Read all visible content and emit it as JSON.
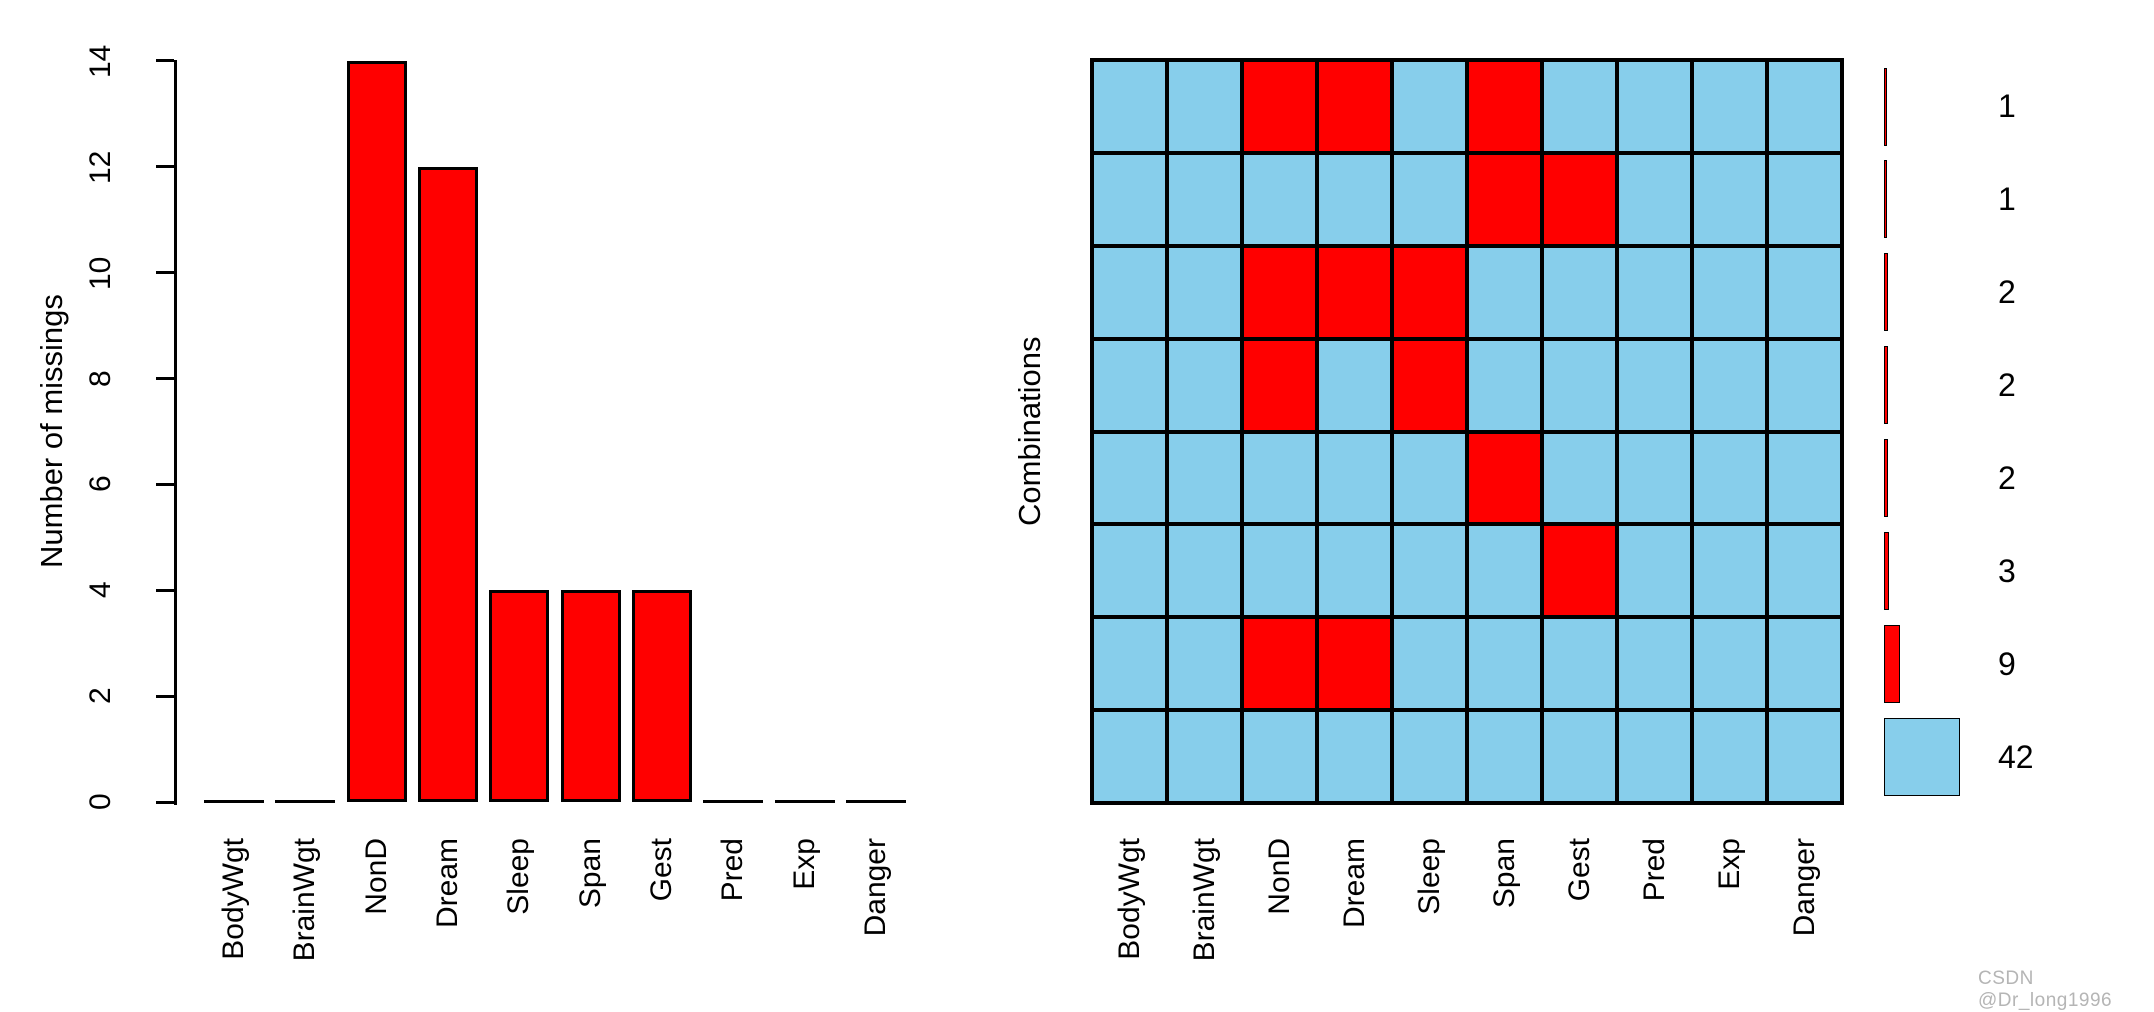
{
  "watermark": {
    "text": "CSDN @Dr_long1996",
    "color": "#b5b5b5"
  },
  "colors": {
    "missing": "#ff0000",
    "observed": "#87ceeb",
    "axis": "#000000"
  },
  "chart_data": [
    {
      "type": "bar",
      "title": "",
      "ylabel": "Number of missings",
      "xlabel": "",
      "categories": [
        "BodyWgt",
        "BrainWgt",
        "NonD",
        "Dream",
        "Sleep",
        "Span",
        "Gest",
        "Pred",
        "Exp",
        "Danger"
      ],
      "values": [
        0,
        0,
        14,
        12,
        4,
        4,
        4,
        0,
        0,
        0
      ],
      "yticks": [
        0,
        2,
        4,
        6,
        8,
        10,
        12,
        14
      ],
      "ylim": [
        0,
        14
      ],
      "bar_color": "#ff0000",
      "grid": false,
      "tick_label_orientation": "vertical",
      "x_label_orientation": "vertical"
    },
    {
      "type": "heatmap",
      "title": "",
      "ylabel": "Combinations",
      "categories": [
        "BodyWgt",
        "BrainWgt",
        "NonD",
        "Dream",
        "Sleep",
        "Span",
        "Gest",
        "Pred",
        "Exp",
        "Danger"
      ],
      "rows": [
        {
          "missing": [
            0,
            0,
            1,
            1,
            0,
            1,
            0,
            0,
            0,
            0
          ],
          "count": 1
        },
        {
          "missing": [
            0,
            0,
            0,
            0,
            0,
            1,
            1,
            0,
            0,
            0
          ],
          "count": 1
        },
        {
          "missing": [
            0,
            0,
            1,
            1,
            1,
            0,
            0,
            0,
            0,
            0
          ],
          "count": 2
        },
        {
          "missing": [
            0,
            0,
            1,
            0,
            1,
            0,
            0,
            0,
            0,
            0
          ],
          "count": 2
        },
        {
          "missing": [
            0,
            0,
            0,
            0,
            0,
            1,
            0,
            0,
            0,
            0
          ],
          "count": 2
        },
        {
          "missing": [
            0,
            0,
            0,
            0,
            0,
            0,
            1,
            0,
            0,
            0
          ],
          "count": 3
        },
        {
          "missing": [
            0,
            0,
            1,
            1,
            0,
            0,
            0,
            0,
            0,
            0
          ],
          "count": 9
        },
        {
          "missing": [
            0,
            0,
            0,
            0,
            0,
            0,
            0,
            0,
            0,
            0
          ],
          "count": 42
        }
      ],
      "cell_colors": {
        "missing": "#ff0000",
        "observed": "#87ceeb"
      },
      "legend_position": "right",
      "legend_counts": [
        1,
        1,
        2,
        2,
        2,
        3,
        9,
        42
      ],
      "x_label_orientation": "vertical"
    }
  ]
}
